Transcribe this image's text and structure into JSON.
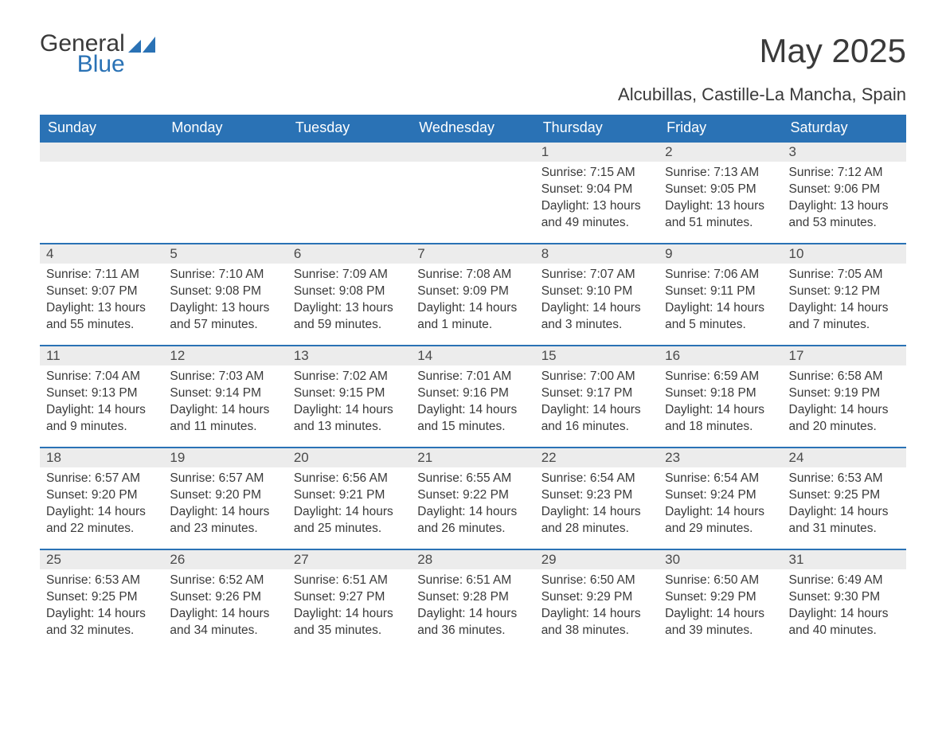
{
  "brand": {
    "word1": "General",
    "word2": "Blue"
  },
  "title": "May 2025",
  "location": "Alcubillas, Castille-La Mancha, Spain",
  "colors": {
    "header_bg": "#2a72b5",
    "header_text": "#ffffff",
    "daynum_bg": "#ececec",
    "border": "#2a72b5",
    "body_text": "#3a3a3a"
  },
  "weekdays": [
    "Sunday",
    "Monday",
    "Tuesday",
    "Wednesday",
    "Thursday",
    "Friday",
    "Saturday"
  ],
  "weeks": [
    [
      null,
      null,
      null,
      null,
      {
        "n": "1",
        "sr": "Sunrise: 7:15 AM",
        "ss": "Sunset: 9:04 PM",
        "dl": "Daylight: 13 hours and 49 minutes."
      },
      {
        "n": "2",
        "sr": "Sunrise: 7:13 AM",
        "ss": "Sunset: 9:05 PM",
        "dl": "Daylight: 13 hours and 51 minutes."
      },
      {
        "n": "3",
        "sr": "Sunrise: 7:12 AM",
        "ss": "Sunset: 9:06 PM",
        "dl": "Daylight: 13 hours and 53 minutes."
      }
    ],
    [
      {
        "n": "4",
        "sr": "Sunrise: 7:11 AM",
        "ss": "Sunset: 9:07 PM",
        "dl": "Daylight: 13 hours and 55 minutes."
      },
      {
        "n": "5",
        "sr": "Sunrise: 7:10 AM",
        "ss": "Sunset: 9:08 PM",
        "dl": "Daylight: 13 hours and 57 minutes."
      },
      {
        "n": "6",
        "sr": "Sunrise: 7:09 AM",
        "ss": "Sunset: 9:08 PM",
        "dl": "Daylight: 13 hours and 59 minutes."
      },
      {
        "n": "7",
        "sr": "Sunrise: 7:08 AM",
        "ss": "Sunset: 9:09 PM",
        "dl": "Daylight: 14 hours and 1 minute."
      },
      {
        "n": "8",
        "sr": "Sunrise: 7:07 AM",
        "ss": "Sunset: 9:10 PM",
        "dl": "Daylight: 14 hours and 3 minutes."
      },
      {
        "n": "9",
        "sr": "Sunrise: 7:06 AM",
        "ss": "Sunset: 9:11 PM",
        "dl": "Daylight: 14 hours and 5 minutes."
      },
      {
        "n": "10",
        "sr": "Sunrise: 7:05 AM",
        "ss": "Sunset: 9:12 PM",
        "dl": "Daylight: 14 hours and 7 minutes."
      }
    ],
    [
      {
        "n": "11",
        "sr": "Sunrise: 7:04 AM",
        "ss": "Sunset: 9:13 PM",
        "dl": "Daylight: 14 hours and 9 minutes."
      },
      {
        "n": "12",
        "sr": "Sunrise: 7:03 AM",
        "ss": "Sunset: 9:14 PM",
        "dl": "Daylight: 14 hours and 11 minutes."
      },
      {
        "n": "13",
        "sr": "Sunrise: 7:02 AM",
        "ss": "Sunset: 9:15 PM",
        "dl": "Daylight: 14 hours and 13 minutes."
      },
      {
        "n": "14",
        "sr": "Sunrise: 7:01 AM",
        "ss": "Sunset: 9:16 PM",
        "dl": "Daylight: 14 hours and 15 minutes."
      },
      {
        "n": "15",
        "sr": "Sunrise: 7:00 AM",
        "ss": "Sunset: 9:17 PM",
        "dl": "Daylight: 14 hours and 16 minutes."
      },
      {
        "n": "16",
        "sr": "Sunrise: 6:59 AM",
        "ss": "Sunset: 9:18 PM",
        "dl": "Daylight: 14 hours and 18 minutes."
      },
      {
        "n": "17",
        "sr": "Sunrise: 6:58 AM",
        "ss": "Sunset: 9:19 PM",
        "dl": "Daylight: 14 hours and 20 minutes."
      }
    ],
    [
      {
        "n": "18",
        "sr": "Sunrise: 6:57 AM",
        "ss": "Sunset: 9:20 PM",
        "dl": "Daylight: 14 hours and 22 minutes."
      },
      {
        "n": "19",
        "sr": "Sunrise: 6:57 AM",
        "ss": "Sunset: 9:20 PM",
        "dl": "Daylight: 14 hours and 23 minutes."
      },
      {
        "n": "20",
        "sr": "Sunrise: 6:56 AM",
        "ss": "Sunset: 9:21 PM",
        "dl": "Daylight: 14 hours and 25 minutes."
      },
      {
        "n": "21",
        "sr": "Sunrise: 6:55 AM",
        "ss": "Sunset: 9:22 PM",
        "dl": "Daylight: 14 hours and 26 minutes."
      },
      {
        "n": "22",
        "sr": "Sunrise: 6:54 AM",
        "ss": "Sunset: 9:23 PM",
        "dl": "Daylight: 14 hours and 28 minutes."
      },
      {
        "n": "23",
        "sr": "Sunrise: 6:54 AM",
        "ss": "Sunset: 9:24 PM",
        "dl": "Daylight: 14 hours and 29 minutes."
      },
      {
        "n": "24",
        "sr": "Sunrise: 6:53 AM",
        "ss": "Sunset: 9:25 PM",
        "dl": "Daylight: 14 hours and 31 minutes."
      }
    ],
    [
      {
        "n": "25",
        "sr": "Sunrise: 6:53 AM",
        "ss": "Sunset: 9:25 PM",
        "dl": "Daylight: 14 hours and 32 minutes."
      },
      {
        "n": "26",
        "sr": "Sunrise: 6:52 AM",
        "ss": "Sunset: 9:26 PM",
        "dl": "Daylight: 14 hours and 34 minutes."
      },
      {
        "n": "27",
        "sr": "Sunrise: 6:51 AM",
        "ss": "Sunset: 9:27 PM",
        "dl": "Daylight: 14 hours and 35 minutes."
      },
      {
        "n": "28",
        "sr": "Sunrise: 6:51 AM",
        "ss": "Sunset: 9:28 PM",
        "dl": "Daylight: 14 hours and 36 minutes."
      },
      {
        "n": "29",
        "sr": "Sunrise: 6:50 AM",
        "ss": "Sunset: 9:29 PM",
        "dl": "Daylight: 14 hours and 38 minutes."
      },
      {
        "n": "30",
        "sr": "Sunrise: 6:50 AM",
        "ss": "Sunset: 9:29 PM",
        "dl": "Daylight: 14 hours and 39 minutes."
      },
      {
        "n": "31",
        "sr": "Sunrise: 6:49 AM",
        "ss": "Sunset: 9:30 PM",
        "dl": "Daylight: 14 hours and 40 minutes."
      }
    ]
  ]
}
